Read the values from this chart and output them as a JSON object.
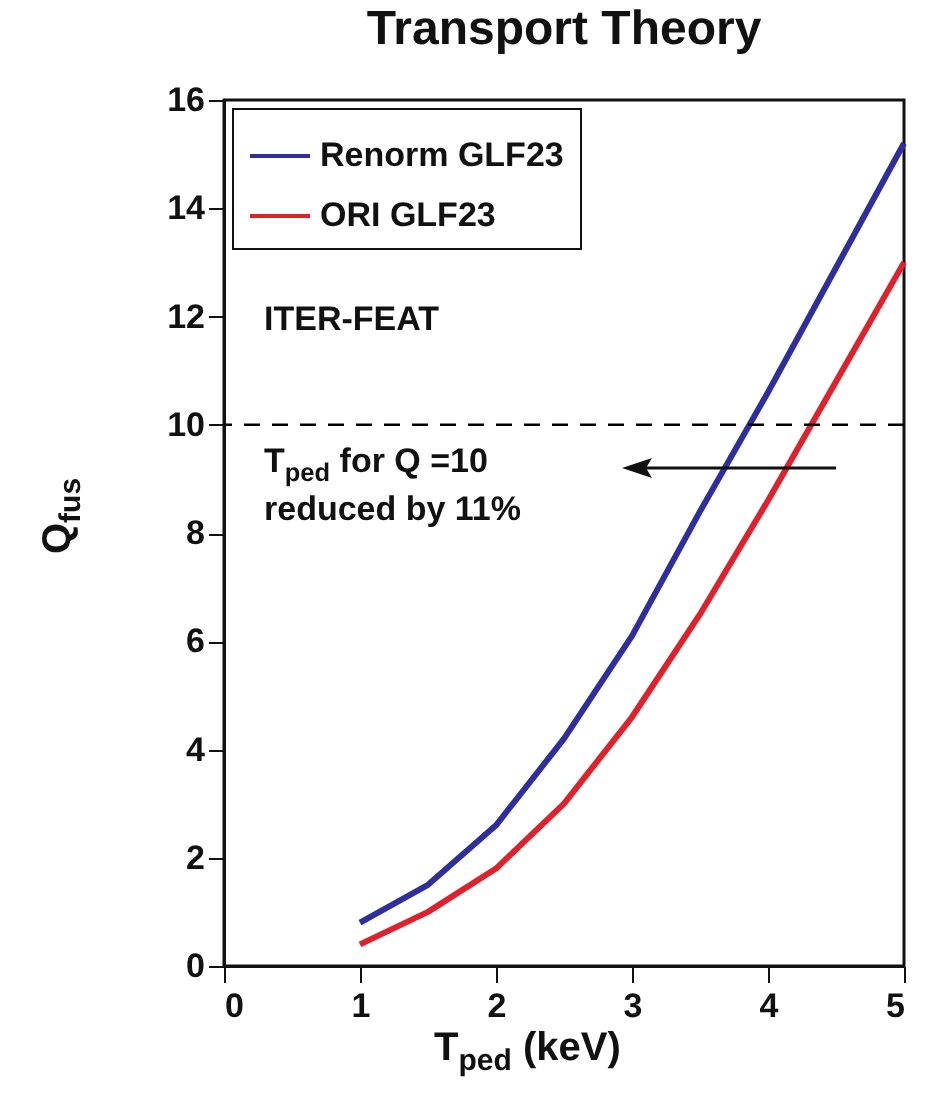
{
  "chart_data": {
    "type": "line",
    "title": "Transport Theory",
    "xlabel": "T$_{ped}$ (keV)",
    "ylabel": "Q$_{fus}$",
    "x": [
      1,
      1.5,
      2,
      2.5,
      3,
      3.5,
      4,
      4.5,
      5
    ],
    "series": [
      {
        "name": "Renorm GLF23",
        "color": "#2e2f9c",
        "values": [
          0.8,
          1.5,
          2.6,
          4.2,
          6.1,
          8.4,
          10.6,
          12.9,
          15.2
        ]
      },
      {
        "name": "ORI GLF23",
        "color": "#e0212b",
        "values": [
          0.4,
          1.0,
          1.8,
          3.0,
          4.6,
          6.5,
          8.6,
          10.8,
          13.0
        ]
      }
    ],
    "xlim": [
      0,
      5
    ],
    "xticks": [
      0,
      1,
      2,
      3,
      4,
      5
    ],
    "ylim": [
      0,
      16
    ],
    "yticks": [
      0,
      2,
      4,
      6,
      8,
      10,
      12,
      14,
      16
    ],
    "ref_lines": [
      {
        "axis": "y",
        "value": 10,
        "color": "#000000",
        "line_style": "dashed"
      }
    ],
    "annotations": [
      "ITER-FEAT",
      "T$_{ped}$ for Q =10 reduced by 11%"
    ],
    "legend": "top left",
    "grid": false,
    "marker": "none",
    "line_style": "solid"
  }
}
